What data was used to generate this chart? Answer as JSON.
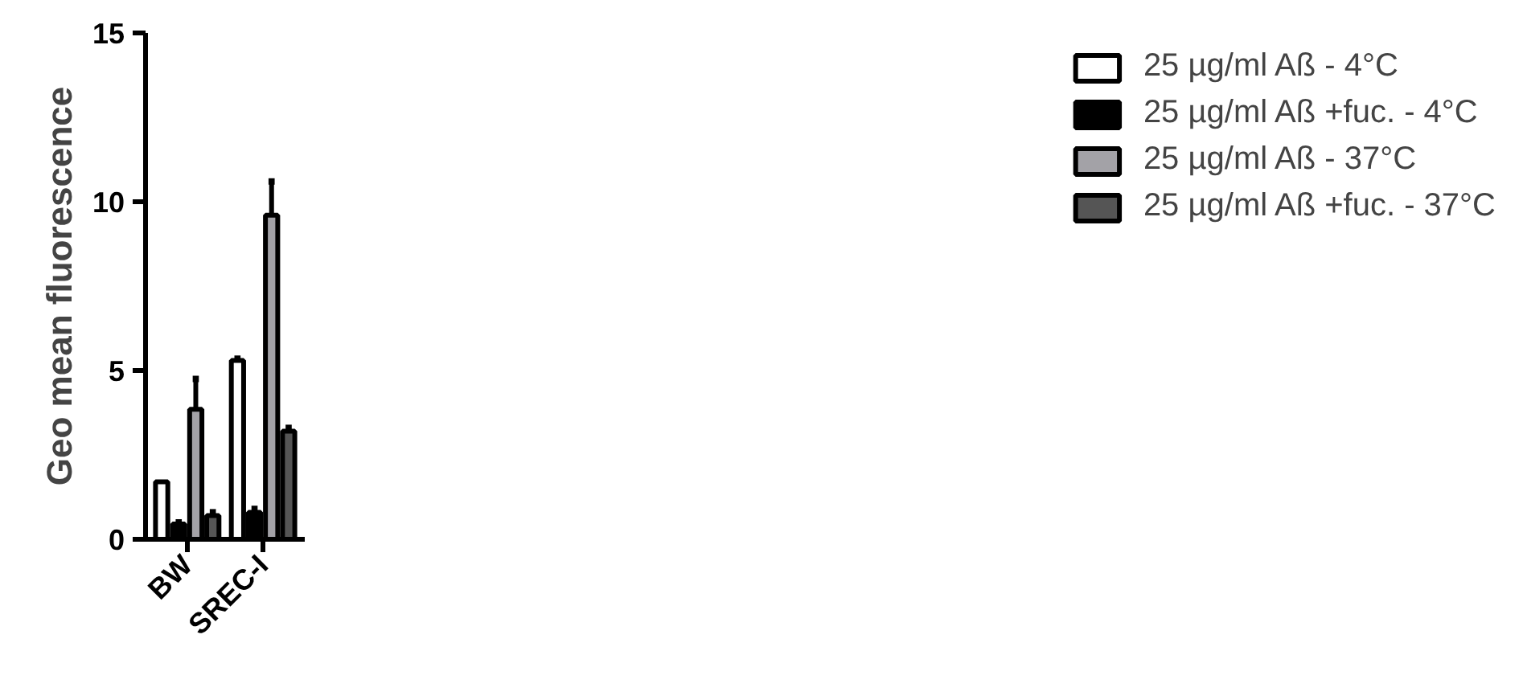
{
  "chart_data": {
    "type": "bar",
    "ylabel": "Geo mean fluorescence",
    "categories": [
      "BW",
      "SREC-I"
    ],
    "ylim": [
      0,
      15
    ],
    "yticks": [
      0,
      5,
      10,
      15
    ],
    "grid": false,
    "legend": "right",
    "series": [
      {
        "name": "25 µg/ml Aß - 4°C",
        "color": "#ffffff",
        "values": [
          1.7,
          5.3
        ],
        "errors": [
          null,
          [
            5.3,
            5.35
          ]
        ]
      },
      {
        "name": "25 µg/ml Aß +fuc. - 4°C",
        "color": "#000000",
        "values": [
          0.45,
          0.8
        ],
        "errors": [
          [
            0.45,
            0.5
          ],
          [
            0.8,
            0.9
          ]
        ]
      },
      {
        "name": "25 µg/ml Aß - 37°C",
        "color": "#a3a2a7",
        "values": [
          3.85,
          9.6
        ],
        "errors": [
          [
            3.85,
            4.75
          ],
          [
            9.6,
            10.6
          ]
        ]
      },
      {
        "name": "25 µg/ml Aß +fuc. - 37°C",
        "color": "#555555",
        "values": [
          0.7,
          3.2
        ],
        "errors": [
          [
            0.7,
            0.8
          ],
          [
            3.2,
            3.3
          ]
        ]
      }
    ]
  }
}
